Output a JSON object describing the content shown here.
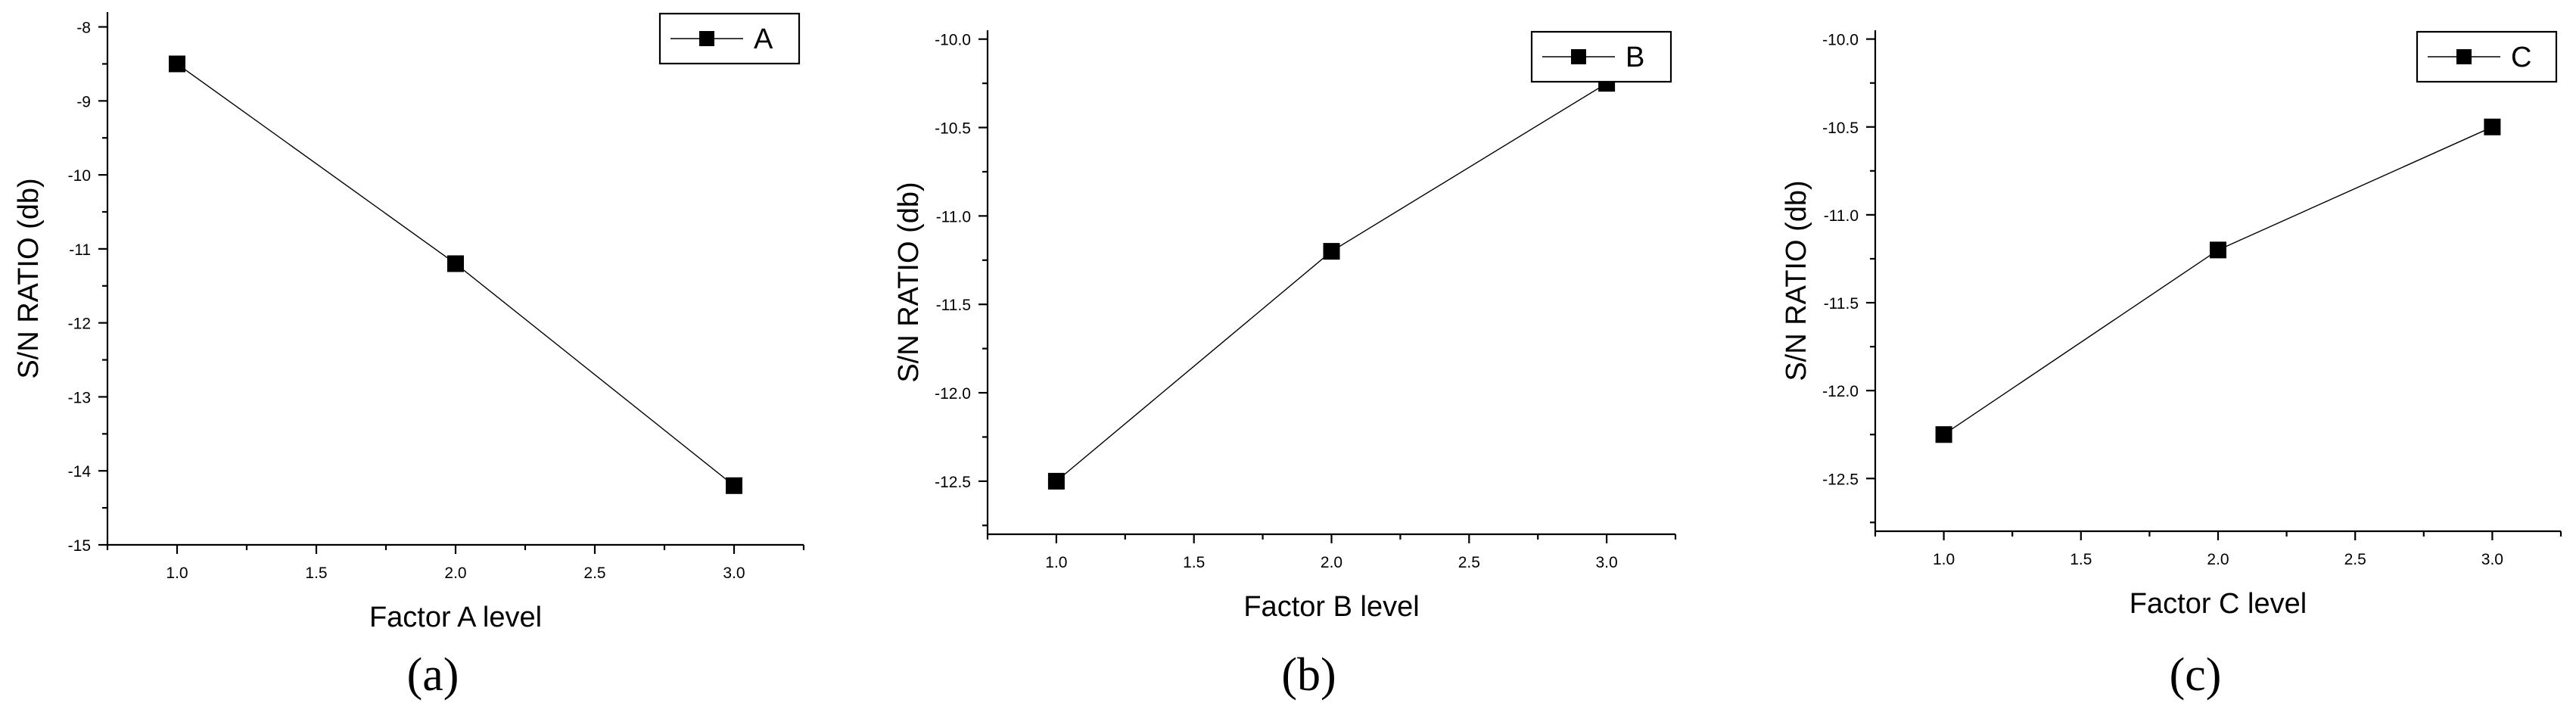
{
  "chart_data": [
    {
      "type": "line",
      "panel_label": "(a)",
      "xlabel": "Factor A level",
      "ylabel": "S/N RATIO (db)",
      "x": [
        1.0,
        2.0,
        3.0
      ],
      "x_ticks": [
        "1.0",
        "1.5",
        "2.0",
        "2.5",
        "3.0"
      ],
      "xlim": [
        0.75,
        3.25
      ],
      "y_ticks": [
        "-8",
        "-9",
        "-10",
        "-11",
        "-12",
        "-13",
        "-14",
        "-15"
      ],
      "ylim": [
        -15,
        -7.8
      ],
      "series": [
        {
          "name": "A",
          "values": [
            -8.5,
            -11.2,
            -14.2
          ]
        }
      ],
      "legend": "top-right",
      "grid": false
    },
    {
      "type": "line",
      "panel_label": "(b)",
      "xlabel": "Factor B level",
      "ylabel": "S/N RATIO (db)",
      "x": [
        1.0,
        2.0,
        3.0
      ],
      "x_ticks": [
        "1.0",
        "1.5",
        "2.0",
        "2.5",
        "3.0"
      ],
      "xlim": [
        0.75,
        3.25
      ],
      "y_ticks": [
        "-10.0",
        "-10.5",
        "-11.0",
        "-11.5",
        "-12.0",
        "-12.5"
      ],
      "ylim": [
        -12.8,
        -9.95
      ],
      "series": [
        {
          "name": "B",
          "values": [
            -12.5,
            -11.2,
            -10.25
          ]
        }
      ],
      "legend": "top-right",
      "grid": false
    },
    {
      "type": "line",
      "panel_label": "(c)",
      "xlabel": "Factor C level",
      "ylabel": "S/N RATIO (db)",
      "x": [
        1.0,
        2.0,
        3.0
      ],
      "x_ticks": [
        "1.0",
        "1.5",
        "2.0",
        "2.5",
        "3.0"
      ],
      "xlim": [
        0.75,
        3.25
      ],
      "y_ticks": [
        "-10.0",
        "-10.5",
        "-11.0",
        "-11.5",
        "-12.0",
        "-12.5"
      ],
      "ylim": [
        -12.8,
        -9.95
      ],
      "series": [
        {
          "name": "C",
          "values": [
            -12.25,
            -11.2,
            -10.5
          ]
        }
      ],
      "legend": "top-right",
      "grid": false
    }
  ]
}
